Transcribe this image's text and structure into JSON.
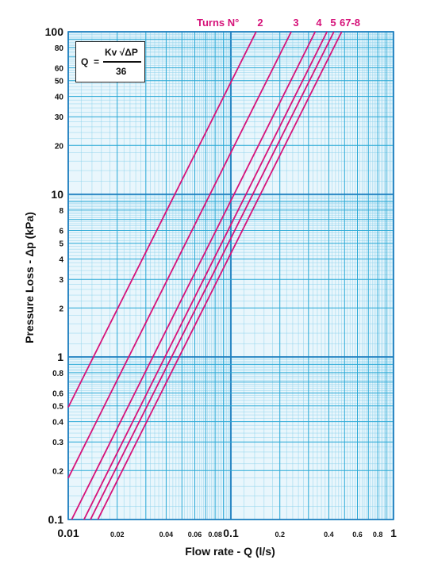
{
  "chart_data": {
    "type": "line",
    "xlabel": "Flow rate - Q (l/s)",
    "ylabel": "Pressure Loss - Δp (kPa)",
    "x_scale": "log",
    "y_scale": "log",
    "xlim": [
      0.01,
      1
    ],
    "ylim": [
      0.1,
      100
    ],
    "grid": true,
    "x_ticks": [
      {
        "value": 0.01,
        "label": "0.01",
        "major": true
      },
      {
        "value": 0.02,
        "label": "0.02",
        "major": false
      },
      {
        "value": 0.04,
        "label": "0.04",
        "major": false
      },
      {
        "value": 0.06,
        "label": "0.06",
        "major": false
      },
      {
        "value": 0.08,
        "label": "0.08",
        "major": false
      },
      {
        "value": 0.1,
        "label": "0.1",
        "major": true
      },
      {
        "value": 0.2,
        "label": "0.2",
        "major": false
      },
      {
        "value": 0.4,
        "label": "0.4",
        "major": false
      },
      {
        "value": 0.6,
        "label": "0.6",
        "major": false
      },
      {
        "value": 0.8,
        "label": "0.8",
        "major": false
      },
      {
        "value": 1,
        "label": "1",
        "major": true
      }
    ],
    "y_ticks": [
      {
        "value": 0.1,
        "label": "0.1",
        "major": true
      },
      {
        "value": 0.2,
        "label": "0.2",
        "major": false
      },
      {
        "value": 0.3,
        "label": "0.3",
        "major": false
      },
      {
        "value": 0.4,
        "label": "0.4",
        "major": false
      },
      {
        "value": 0.5,
        "label": "0.5",
        "major": false
      },
      {
        "value": 0.6,
        "label": "0.6",
        "major": false
      },
      {
        "value": 0.8,
        "label": "0.8",
        "major": false
      },
      {
        "value": 1,
        "label": "1",
        "major": true
      },
      {
        "value": 2,
        "label": "2",
        "major": false
      },
      {
        "value": 3,
        "label": "3",
        "major": false
      },
      {
        "value": 4,
        "label": "4",
        "major": false
      },
      {
        "value": 5,
        "label": "5",
        "major": false
      },
      {
        "value": 6,
        "label": "6",
        "major": false
      },
      {
        "value": 8,
        "label": "8",
        "major": false
      },
      {
        "value": 10,
        "label": "10",
        "major": true
      },
      {
        "value": 20,
        "label": "20",
        "major": false
      },
      {
        "value": 30,
        "label": "30",
        "major": false
      },
      {
        "value": 40,
        "label": "40",
        "major": false
      },
      {
        "value": 50,
        "label": "50",
        "major": false
      },
      {
        "value": 60,
        "label": "60",
        "major": false
      },
      {
        "value": 80,
        "label": "80",
        "major": false
      },
      {
        "value": 100,
        "label": "100",
        "major": true
      }
    ],
    "turns_title": "Turns N°",
    "series": [
      {
        "name": "2",
        "points": [
          [
            0.01,
            0.49
          ],
          [
            0.143,
            100
          ]
        ]
      },
      {
        "name": "3",
        "points": [
          [
            0.01,
            0.18
          ],
          [
            0.235,
            100
          ]
        ]
      },
      {
        "name": "4",
        "points": [
          [
            0.0105,
            0.1
          ],
          [
            0.33,
            100
          ]
        ]
      },
      {
        "name": "5",
        "points": [
          [
            0.0125,
            0.1
          ],
          [
            0.39,
            100
          ]
        ]
      },
      {
        "name": "6",
        "points": [
          [
            0.0137,
            0.1
          ],
          [
            0.43,
            100
          ]
        ]
      },
      {
        "name": "7-8",
        "points": [
          [
            0.0152,
            0.1
          ],
          [
            0.48,
            100
          ]
        ]
      }
    ],
    "series_label_text": [
      "2",
      "3",
      "4",
      "5",
      "67-8"
    ],
    "formula": {
      "lhs": "Q",
      "eq": "=",
      "numerator": "Kv √ΔP",
      "denominator": "36"
    },
    "colors": {
      "grid_major": "#2aa9d6",
      "grid_minor": "#8fd3ec",
      "background": "#e9f6fc",
      "curve": "#d6137a"
    }
  }
}
